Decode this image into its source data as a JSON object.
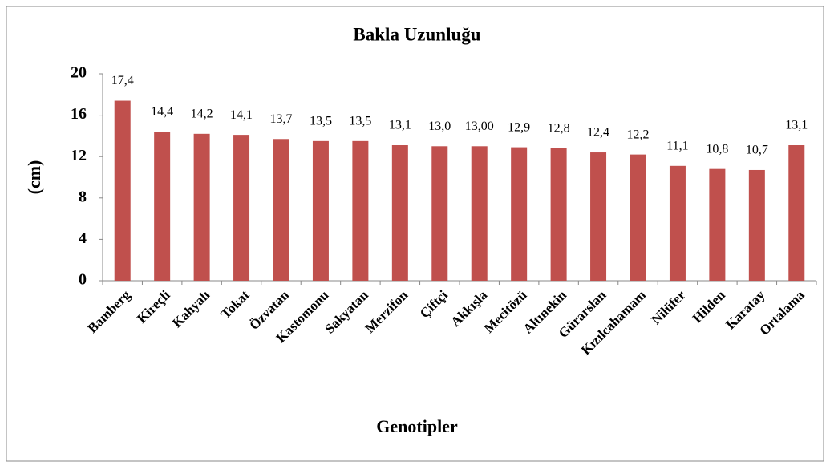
{
  "chart_data": {
    "type": "bar",
    "title": "Bakla Uzunluğu",
    "xlabel": "Genotipler",
    "ylabel": "(cm)",
    "categories": [
      "Bamberg",
      "Kireçli",
      "Kahyalı",
      "Tokat",
      "Özvatan",
      "Kastomonu",
      "Sakyatan",
      "Merzifon",
      "Çiftçi",
      "Akkışla",
      "Mecitözü",
      "Altınekin",
      "Gürarslan",
      "Kızılcahamam",
      "Nilüfer",
      "Hilden",
      "Karatay",
      "Ortalama"
    ],
    "values": [
      17.4,
      14.4,
      14.2,
      14.1,
      13.7,
      13.5,
      13.5,
      13.1,
      13.0,
      13.0,
      12.9,
      12.8,
      12.4,
      12.2,
      11.1,
      10.8,
      10.7,
      13.1
    ],
    "value_labels": [
      "17,4",
      "14,4",
      "14,2",
      "14,1",
      "13,7",
      "13,5",
      "13,5",
      "13,1",
      "13,0",
      "13,00",
      "12,9",
      "12,8",
      "12,4",
      "12,2",
      "11,1",
      "10,8",
      "10,7",
      "13,1"
    ],
    "color": "#c0504d",
    "ylim": [
      0,
      20
    ],
    "yticks": [
      0,
      4,
      8,
      12,
      16,
      20
    ],
    "grid": false
  }
}
